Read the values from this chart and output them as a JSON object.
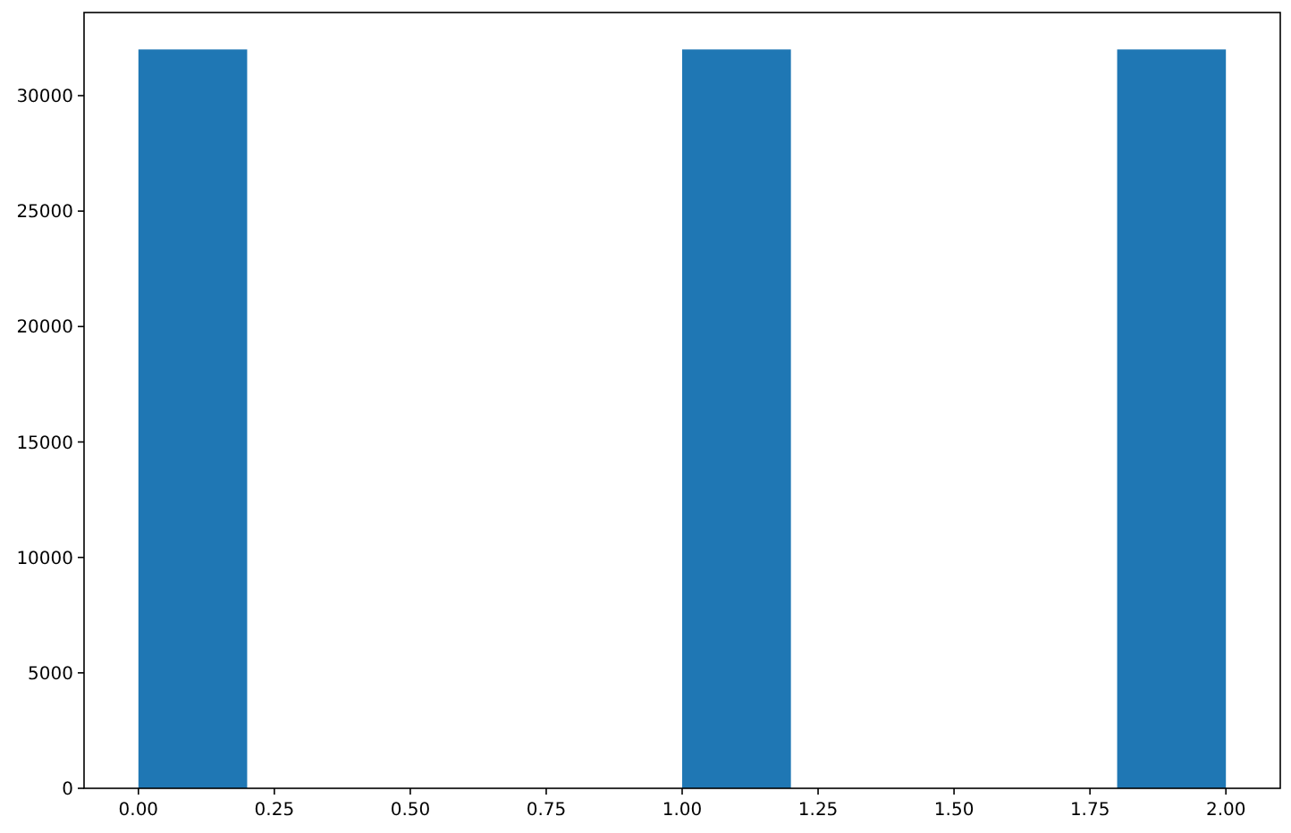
{
  "chart_data": {
    "type": "histogram",
    "bins": [
      0,
      0.2,
      0.4,
      0.6,
      0.8,
      1.0,
      1.2,
      1.4,
      1.6,
      1.8,
      2.0
    ],
    "values": [
      32000,
      0,
      0,
      0,
      0,
      32000,
      0,
      0,
      0,
      32000
    ],
    "color": "#1f77b4",
    "xlim": [
      -0.1,
      2.1
    ],
    "xticks": [
      {
        "value": 0,
        "label": "0.00"
      },
      {
        "value": 0.25,
        "label": "0.25"
      },
      {
        "value": 0.5,
        "label": "0.50"
      },
      {
        "value": 0.75,
        "label": "0.75"
      },
      {
        "value": 1,
        "label": "1.00"
      },
      {
        "value": 1.25,
        "label": "1.25"
      },
      {
        "value": 1.5,
        "label": "1.50"
      },
      {
        "value": 1.75,
        "label": "1.75"
      },
      {
        "value": 2,
        "label": "2.00"
      }
    ],
    "ylim": [
      0,
      33600
    ],
    "yticks": [
      0,
      5000,
      10000,
      15000,
      20000,
      25000,
      30000
    ]
  }
}
